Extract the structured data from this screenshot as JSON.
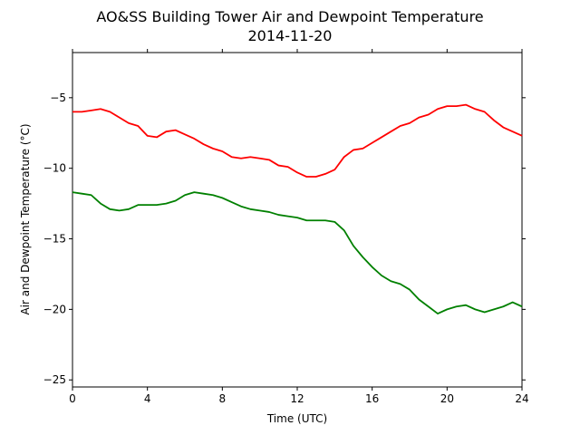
{
  "chart_data": {
    "type": "line",
    "title": "AO&SS Building Tower Air and Dewpoint Temperature",
    "subtitle": "2014-11-20",
    "xlabel": "Time (UTC)",
    "ylabel": "Air and Dewpoint Temperature (°C)",
    "xlim": [
      0,
      24
    ],
    "ylim": [
      -25.5,
      -1.8
    ],
    "xticks": [
      0,
      4,
      8,
      12,
      16,
      20,
      24
    ],
    "yticks": [
      -25,
      -20,
      -15,
      -10,
      -5
    ],
    "grid": false,
    "series": [
      {
        "color": "#ff0000",
        "x": [
          0,
          0.5,
          1.0,
          1.5,
          2.0,
          2.5,
          3.0,
          3.5,
          4.0,
          4.5,
          5.0,
          5.5,
          6.0,
          6.5,
          7.0,
          7.5,
          8.0,
          8.5,
          9.0,
          9.5,
          10.0,
          10.5,
          11.0,
          11.5,
          12.0,
          12.5,
          13.0,
          13.5,
          14.0,
          14.5,
          15.0,
          15.5,
          16.0,
          16.5,
          17.0,
          17.5,
          18.0,
          18.5,
          19.0,
          19.5,
          20.0,
          20.5,
          21.0,
          21.5,
          22.0,
          22.5,
          23.0,
          23.5,
          24.0
        ],
        "y": [
          -6.0,
          -6.0,
          -5.9,
          -5.8,
          -6.0,
          -6.4,
          -6.8,
          -7.0,
          -7.7,
          -7.8,
          -7.4,
          -7.3,
          -7.6,
          -7.9,
          -8.3,
          -8.6,
          -8.8,
          -9.2,
          -9.3,
          -9.2,
          -9.3,
          -9.4,
          -9.8,
          -9.9,
          -10.3,
          -10.6,
          -10.6,
          -10.4,
          -10.1,
          -9.2,
          -8.7,
          -8.6,
          -8.2,
          -7.8,
          -7.4,
          -7.0,
          -6.8,
          -6.4,
          -6.2,
          -5.8,
          -5.6,
          -5.6,
          -5.5,
          -5.8,
          -6.0,
          -6.6,
          -7.1,
          -7.4,
          -7.7
        ]
      },
      {
        "color": "#008000",
        "x": [
          0,
          0.5,
          1.0,
          1.5,
          2.0,
          2.5,
          3.0,
          3.5,
          4.0,
          4.5,
          5.0,
          5.5,
          6.0,
          6.5,
          7.0,
          7.5,
          8.0,
          8.5,
          9.0,
          9.5,
          10.0,
          10.5,
          11.0,
          11.5,
          12.0,
          12.5,
          13.0,
          13.5,
          14.0,
          14.5,
          15.0,
          15.5,
          16.0,
          16.5,
          17.0,
          17.5,
          18.0,
          18.5,
          19.0,
          19.5,
          20.0,
          20.5,
          21.0,
          21.5,
          22.0,
          22.5,
          23.0,
          23.5,
          24.0
        ],
        "y": [
          -11.7,
          -11.8,
          -11.9,
          -12.5,
          -12.9,
          -13.0,
          -12.9,
          -12.6,
          -12.6,
          -12.6,
          -12.5,
          -12.3,
          -11.9,
          -11.7,
          -11.8,
          -11.9,
          -12.1,
          -12.4,
          -12.7,
          -12.9,
          -13.0,
          -13.1,
          -13.3,
          -13.4,
          -13.5,
          -13.7,
          -13.7,
          -13.7,
          -13.8,
          -14.4,
          -15.5,
          -16.3,
          -17.0,
          -17.6,
          -18.0,
          -18.2,
          -18.6,
          -19.3,
          -19.8,
          -20.3,
          -20.0,
          -19.8,
          -19.7,
          -20.0,
          -20.2,
          -20.0,
          -19.8,
          -19.5,
          -19.8
        ]
      }
    ]
  }
}
